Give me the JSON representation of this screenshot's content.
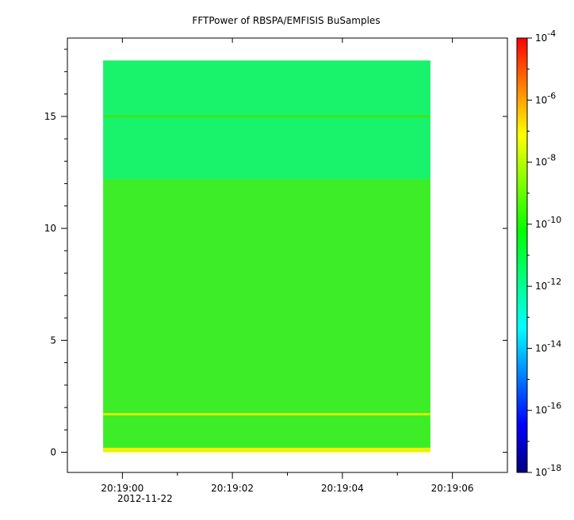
{
  "chart_data": {
    "type": "heatmap",
    "title": "FFTPower of RBSPA/EMFISIS  BuSamples",
    "xlabel": "",
    "ylabel": "",
    "x_axis": {
      "tick_labels": [
        "20:19:00",
        "20:19:02",
        "20:19:04",
        "20:19:06"
      ],
      "tick_values_s": [
        0,
        2,
        4,
        6
      ],
      "date_label": "2012-11-22",
      "range_s": [
        -1.0,
        7.0
      ],
      "data_range_s": [
        -0.35,
        5.6
      ]
    },
    "y_axis": {
      "tick_labels": [
        "0",
        "5",
        "10",
        "15"
      ],
      "tick_values": [
        0,
        5,
        10,
        15
      ],
      "range": [
        -0.9,
        18.5
      ],
      "data_range": [
        0,
        17.5
      ]
    },
    "colorbar": {
      "scale": "log",
      "range": [
        1e-18,
        0.0001
      ],
      "tick_values": [
        1e-18,
        1e-16,
        1e-14,
        1e-12,
        1e-10,
        1e-08,
        1e-06,
        0.0001
      ],
      "tick_base": "10",
      "tick_exponents": [
        "-18",
        "-16",
        "-14",
        "-12",
        "-10",
        "-8",
        "-6",
        "-4"
      ],
      "colormap": "rainbow",
      "colors": [
        "#00007f",
        "#0000ff",
        "#0080ff",
        "#00ffff",
        "#00ff80",
        "#00ff00",
        "#80ff00",
        "#ffff00",
        "#ff8000",
        "#ff0000"
      ]
    },
    "regions": [
      {
        "y_from": 12.2,
        "y_to": 17.5,
        "typical_power": 1e-12,
        "color": "#19f26b"
      },
      {
        "y_from": 0.2,
        "y_to": 12.2,
        "typical_power": 3e-10,
        "color": "#3ced28"
      },
      {
        "y_from": 0,
        "y_to": 0.2,
        "typical_power": 1e-08,
        "color": "#f1f000"
      }
    ],
    "lines": [
      {
        "y": 15.0,
        "typical_power": 3e-10,
        "color": "#3fe51f"
      },
      {
        "y": 1.7,
        "typical_power": 1e-08,
        "color": "#d7f000"
      }
    ]
  }
}
